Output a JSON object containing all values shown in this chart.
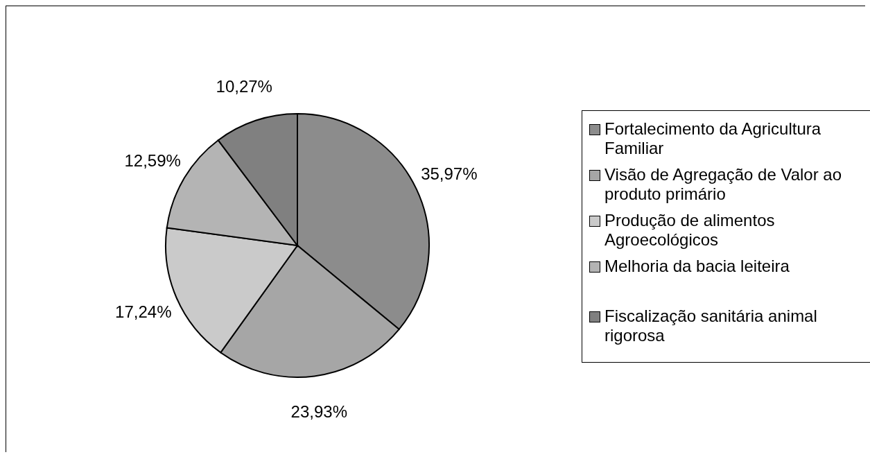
{
  "chart_data": {
    "type": "pie",
    "categories": [
      "Fortalecimento da Agricultura Familiar",
      "Visão de Agregação de Valor ao produto primário",
      "Produção de alimentos Agroecológicos",
      "Melhoria da bacia leiteira",
      "Fiscalização sanitária animal rigorosa"
    ],
    "values": [
      35.97,
      23.93,
      17.24,
      12.59,
      10.27
    ],
    "value_labels": [
      "35,97%",
      "23,93%",
      "17,24%",
      "12,59%",
      "10,27%"
    ],
    "colors": [
      "#8c8c8c",
      "#a6a6a6",
      "#cacaca",
      "#b4b4b4",
      "#808080"
    ],
    "legend": "right"
  }
}
